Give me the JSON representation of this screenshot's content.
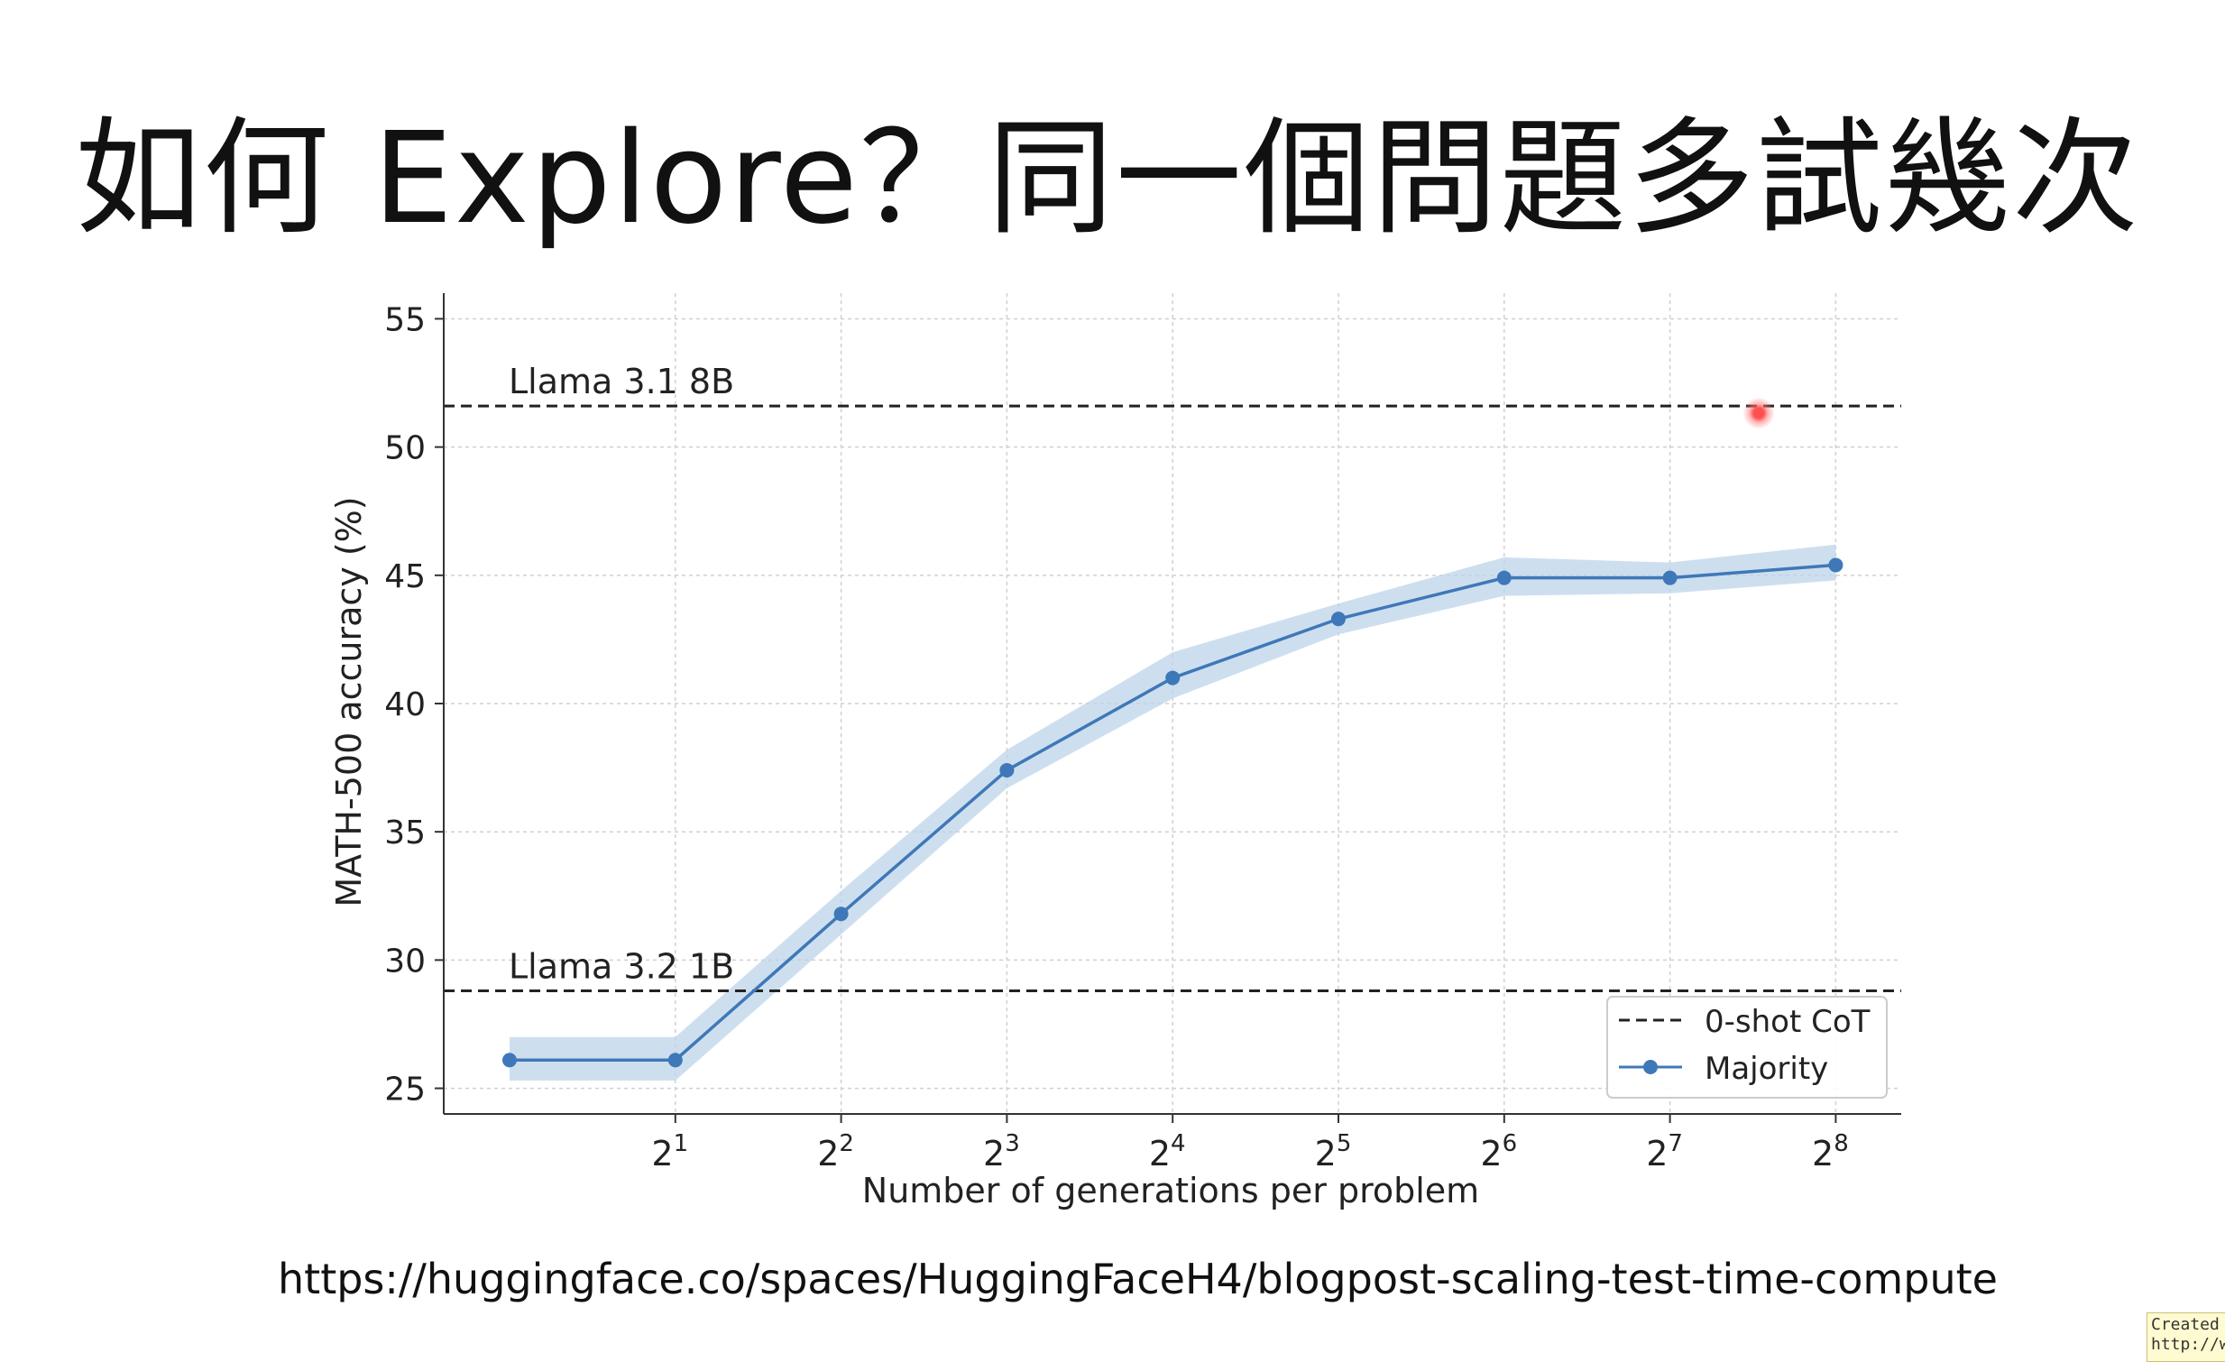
{
  "slide": {
    "title": "如何 Explore？同一個問題多試幾次",
    "source_url": "https://huggingface.co/spaces/HuggingFaceH4/blogpost-scaling-test-time-compute",
    "watermark_lines": [
      "Created",
      "http://w"
    ]
  },
  "chart_data": {
    "type": "line",
    "title": "",
    "xlabel": "Number of generations per problem",
    "ylabel": "MATH-500 accuracy (%)",
    "x_scale": "log2",
    "x": [
      1,
      2,
      4,
      8,
      16,
      32,
      64,
      128,
      256
    ],
    "x_tick_values": [
      2,
      4,
      8,
      16,
      32,
      64,
      128,
      256
    ],
    "x_tick_labels": [
      {
        "base": "2",
        "exp": "1"
      },
      {
        "base": "2",
        "exp": "2"
      },
      {
        "base": "2",
        "exp": "3"
      },
      {
        "base": "2",
        "exp": "4"
      },
      {
        "base": "2",
        "exp": "5"
      },
      {
        "base": "2",
        "exp": "6"
      },
      {
        "base": "2",
        "exp": "7"
      },
      {
        "base": "2",
        "exp": "8"
      }
    ],
    "ylim": [
      24,
      56
    ],
    "y_ticks": [
      25,
      30,
      35,
      40,
      45,
      50,
      55
    ],
    "grid": true,
    "series": [
      {
        "name": "Majority",
        "color": "#3f78b8",
        "band_color": "#bcd4ea",
        "values": [
          26.1,
          26.1,
          31.8,
          37.4,
          41.0,
          43.3,
          44.9,
          44.9,
          45.4
        ],
        "lower": [
          25.3,
          25.3,
          31.0,
          36.7,
          40.2,
          42.7,
          44.2,
          44.3,
          44.8
        ],
        "upper": [
          27.0,
          27.0,
          32.7,
          38.2,
          42.0,
          43.9,
          45.7,
          45.5,
          46.2
        ]
      }
    ],
    "reference_lines": [
      {
        "label": "Llama 3.1 8B",
        "y": 51.6,
        "style": "dashed",
        "color": "#222222"
      },
      {
        "label": "Llama 3.2 1B",
        "y": 28.8,
        "style": "dashed",
        "color": "#222222"
      }
    ],
    "legend": {
      "position": "bottom-right",
      "entries": [
        {
          "label": "0-shot CoT",
          "style": "dashed"
        },
        {
          "label": "Majority",
          "style": "line-marker"
        }
      ]
    }
  }
}
